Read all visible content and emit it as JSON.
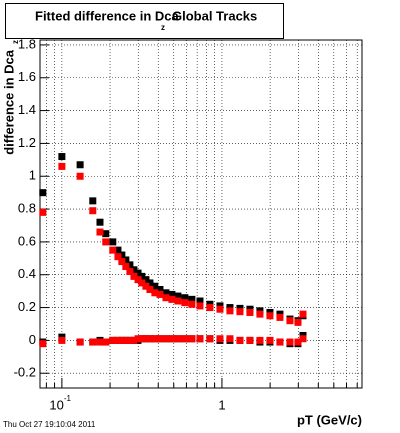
{
  "chart_data": {
    "type": "scatter",
    "title": "Fitted difference in Dca",
    "title_subscript": "z",
    "title_suffix": "Global Tracks",
    "y_label": "difference in Dca",
    "y_label_subscript": "z",
    "x_label": "pT (GeV/c)",
    "footer": "Thu Oct 27 19:10:04 2011",
    "log_x": true,
    "grid": true,
    "xlim": [
      0.073,
      7.5
    ],
    "ylim": [
      -0.29,
      1.83
    ],
    "xticks": [
      {
        "value": 0.1,
        "label": "10",
        "exponent": "-1"
      },
      1
    ],
    "xminorticks": [
      0.08,
      0.09,
      0.2,
      0.3,
      0.4,
      0.5,
      0.6,
      0.7,
      0.8,
      0.9,
      2,
      3,
      4,
      5,
      6,
      7
    ],
    "yticks": [
      -0.2,
      0,
      0.2,
      0.4,
      0.6,
      0.8,
      1,
      1.2,
      1.4,
      1.6,
      1.8
    ],
    "x": [
      0.076,
      0.1,
      0.13,
      0.156,
      0.173,
      0.188,
      0.208,
      0.224,
      0.237,
      0.251,
      0.266,
      0.282,
      0.299,
      0.316,
      0.335,
      0.355,
      0.381,
      0.41,
      0.447,
      0.487,
      0.531,
      0.587,
      0.649,
      0.729,
      0.841,
      0.972,
      1.122,
      1.296,
      1.496,
      1.727,
      1.995,
      2.304,
      2.661,
      2.985,
      3.21
    ],
    "series": [
      {
        "color": "#000000",
        "values": [
          0.9,
          1.12,
          1.07,
          0.85,
          0.72,
          0.65,
          0.6,
          0.55,
          0.52,
          0.49,
          0.46,
          0.43,
          0.41,
          0.39,
          0.37,
          0.35,
          0.33,
          0.31,
          0.29,
          0.28,
          0.27,
          0.26,
          0.25,
          0.24,
          0.22,
          0.21,
          0.2,
          0.195,
          0.19,
          0.18,
          0.17,
          0.16,
          0.13,
          0.12,
          0.15
        ]
      },
      {
        "color": "#000000",
        "values": [
          -0.01,
          0.02,
          -0.01,
          -0.01,
          0,
          -0.01,
          0,
          0,
          0,
          0,
          0,
          0,
          0,
          0.01,
          0.01,
          0.01,
          0.01,
          0.01,
          0.01,
          0.01,
          0.01,
          0.01,
          0.01,
          0.01,
          0.01,
          0,
          0,
          0,
          0,
          -0.01,
          -0.01,
          -0.01,
          -0.02,
          -0.02,
          0.03
        ]
      },
      {
        "color": "#ff0000",
        "values": [
          0.78,
          1.06,
          1.0,
          0.79,
          0.66,
          0.6,
          0.55,
          0.51,
          0.48,
          0.45,
          0.42,
          0.39,
          0.37,
          0.35,
          0.33,
          0.31,
          0.29,
          0.28,
          0.26,
          0.25,
          0.24,
          0.23,
          0.22,
          0.21,
          0.2,
          0.19,
          0.18,
          0.175,
          0.17,
          0.16,
          0.15,
          0.14,
          0.12,
          0.11,
          0.16
        ]
      },
      {
        "color": "#ff0000",
        "values": [
          -0.02,
          0,
          -0.01,
          -0.01,
          -0.01,
          -0.01,
          0,
          0,
          0,
          0,
          0,
          0,
          0.01,
          0.01,
          0.01,
          0.01,
          0.01,
          0.01,
          0.01,
          0.01,
          0.01,
          0.01,
          0.01,
          0.01,
          0.01,
          0.01,
          0.01,
          0,
          0,
          0,
          0,
          -0.01,
          -0.01,
          -0.01,
          0.01
        ]
      }
    ]
  }
}
